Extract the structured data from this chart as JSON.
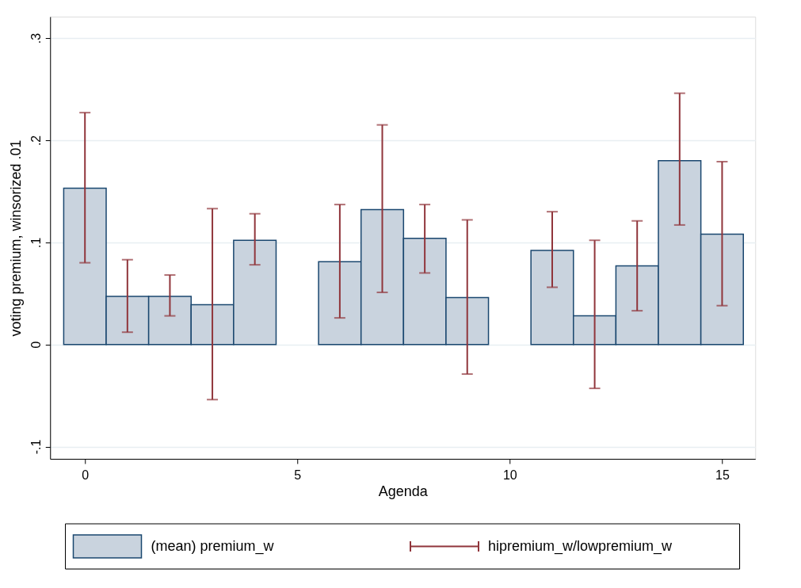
{
  "chart_data": {
    "type": "bar",
    "xlabel": "Agenda",
    "ylabel": "voting premium, winsorized .01",
    "x": [
      0,
      1,
      2,
      3,
      4,
      6,
      7,
      8,
      9,
      11,
      12,
      13,
      14,
      15
    ],
    "series": [
      {
        "name": "(mean) premium_w",
        "color": "#c9d3de",
        "values": [
          0.153,
          0.047,
          0.047,
          0.039,
          0.102,
          0.081,
          0.132,
          0.104,
          0.046,
          0.092,
          0.028,
          0.077,
          0.18,
          0.108
        ],
        "errors": [
          [
            0.08,
            0.227
          ],
          [
            0.012,
            0.083
          ],
          [
            0.028,
            0.068
          ],
          [
            -0.054,
            0.133
          ],
          [
            0.078,
            0.128
          ],
          [
            0.026,
            0.137
          ],
          [
            0.051,
            0.215
          ],
          [
            0.07,
            0.137
          ],
          [
            -0.029,
            0.122
          ],
          [
            0.056,
            0.13
          ],
          [
            -0.043,
            0.102
          ],
          [
            0.033,
            0.121
          ],
          [
            0.117,
            0.246
          ],
          [
            0.038,
            0.179
          ]
        ]
      },
      {
        "name": "hipremium_w/lowpremium_w",
        "color": "#90353b",
        "type": "other",
        "values": [
          null,
          null,
          null,
          null,
          null,
          null,
          null,
          null,
          null,
          null,
          null,
          null,
          null,
          null
        ]
      }
    ],
    "xlim": [
      -0.82,
      15.78
    ],
    "ylim": [
      -0.112,
      0.321
    ],
    "xticks": [
      0,
      5,
      10,
      15
    ],
    "yticks": [
      {
        "value": -0.1,
        "label": "-.1"
      },
      {
        "value": 0,
        "label": "0"
      },
      {
        "value": 0.1,
        "label": ".1"
      },
      {
        "value": 0.2,
        "label": ".2"
      },
      {
        "value": 0.3,
        "label": ".3"
      }
    ],
    "grid": "y",
    "legend": "bottom"
  }
}
